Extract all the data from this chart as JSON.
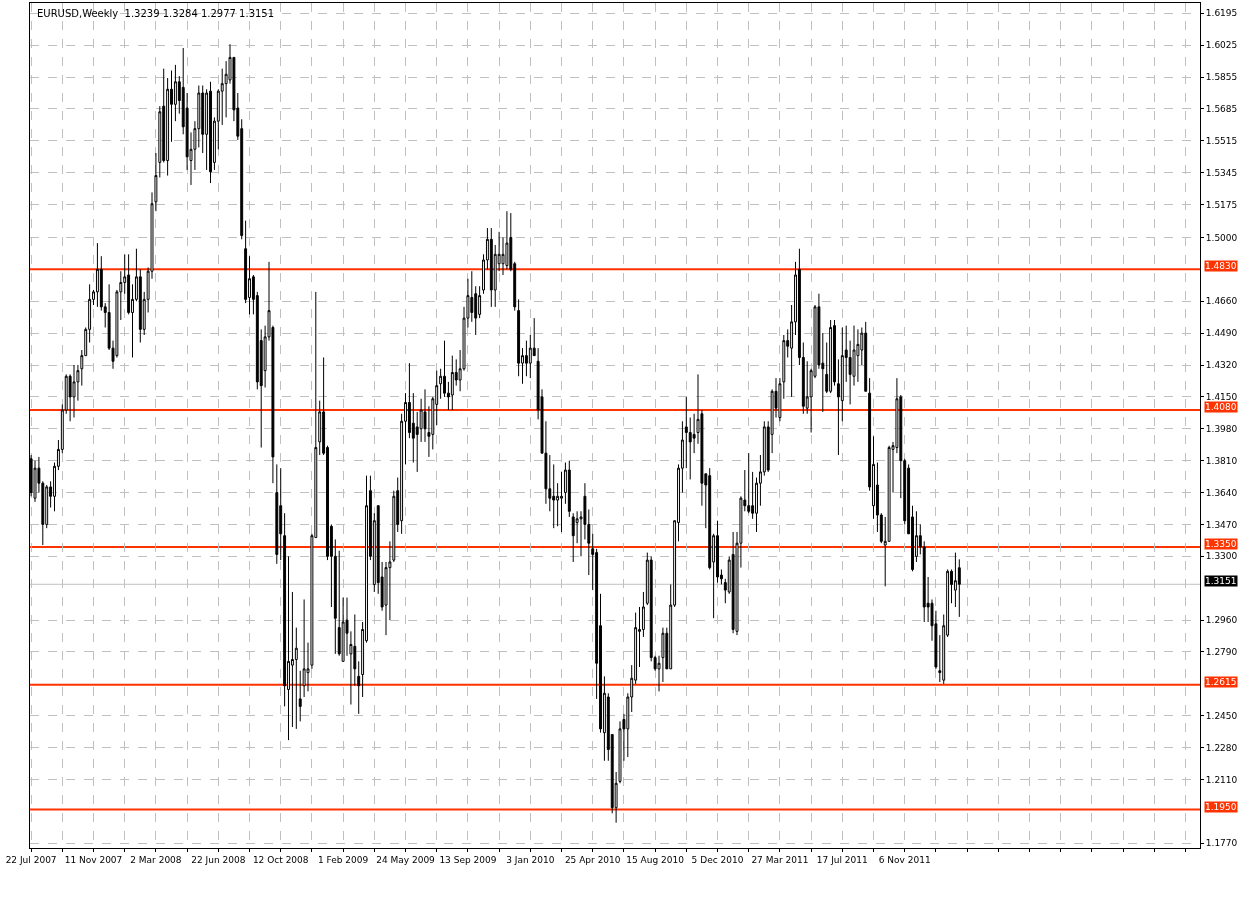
{
  "chart_data": {
    "type": "candlestick",
    "title": "EURUSD,Weekly  1.3239 1.3284 1.2977 1.3151",
    "x": [
      "2007-07-22",
      "2007-07-29",
      "2007-08-05",
      "2007-08-12",
      "2007-08-19",
      "2007-08-26",
      "2007-09-02",
      "2007-09-09",
      "2007-09-16",
      "2007-09-23",
      "2007-09-30",
      "2007-10-07",
      "2007-10-14",
      "2007-10-21",
      "2007-10-28",
      "2007-11-04",
      "2007-11-11",
      "2007-11-18",
      "2007-11-25",
      "2007-12-02",
      "2007-12-09",
      "2007-12-16",
      "2007-12-23",
      "2007-12-30",
      "2008-01-06",
      "2008-01-13",
      "2008-01-20",
      "2008-01-27",
      "2008-02-03",
      "2008-02-10",
      "2008-02-17",
      "2008-02-24",
      "2008-03-02",
      "2008-03-09",
      "2008-03-16",
      "2008-03-23",
      "2008-03-30",
      "2008-04-06",
      "2008-04-13",
      "2008-04-20",
      "2008-04-27",
      "2008-05-04",
      "2008-05-11",
      "2008-05-18",
      "2008-05-25",
      "2008-06-01",
      "2008-06-08",
      "2008-06-15",
      "2008-06-22",
      "2008-06-29",
      "2008-07-06",
      "2008-07-13",
      "2008-07-20",
      "2008-07-27",
      "2008-08-03",
      "2008-08-10",
      "2008-08-17",
      "2008-08-24",
      "2008-08-31",
      "2008-09-07",
      "2008-09-14",
      "2008-09-21",
      "2008-09-28",
      "2008-10-05",
      "2008-10-12",
      "2008-10-19",
      "2008-10-26",
      "2008-11-02",
      "2008-11-09",
      "2008-11-16",
      "2008-11-23",
      "2008-11-30",
      "2008-12-07",
      "2008-12-14",
      "2008-12-21",
      "2008-12-28",
      "2009-01-04",
      "2009-01-11",
      "2009-01-18",
      "2009-01-25",
      "2009-02-01",
      "2009-02-08",
      "2009-02-15",
      "2009-02-22",
      "2009-03-01",
      "2009-03-08",
      "2009-03-15",
      "2009-03-22",
      "2009-03-29",
      "2009-04-05",
      "2009-04-12",
      "2009-04-19",
      "2009-04-26",
      "2009-05-03",
      "2009-05-10",
      "2009-05-17",
      "2009-05-24",
      "2009-05-31",
      "2009-06-07",
      "2009-06-14",
      "2009-06-21",
      "2009-06-28",
      "2009-07-05",
      "2009-07-12",
      "2009-07-19",
      "2009-07-26",
      "2009-08-02",
      "2009-08-09",
      "2009-08-16",
      "2009-08-23",
      "2009-08-30",
      "2009-09-06",
      "2009-09-13",
      "2009-09-20",
      "2009-09-27",
      "2009-10-04",
      "2009-10-11",
      "2009-10-18",
      "2009-10-25",
      "2009-11-01",
      "2009-11-08",
      "2009-11-15",
      "2009-11-22",
      "2009-11-29",
      "2009-12-06",
      "2009-12-13",
      "2009-12-20",
      "2009-12-27",
      "2010-01-03",
      "2010-01-10",
      "2010-01-17",
      "2010-01-24",
      "2010-01-31",
      "2010-02-07",
      "2010-02-14",
      "2010-02-21",
      "2010-02-28",
      "2010-03-07",
      "2010-03-14",
      "2010-03-21",
      "2010-03-28",
      "2010-04-04",
      "2010-04-11",
      "2010-04-18",
      "2010-04-25",
      "2010-05-02",
      "2010-05-09",
      "2010-05-16",
      "2010-05-23",
      "2010-05-30",
      "2010-06-06",
      "2010-06-13",
      "2010-06-20",
      "2010-06-27",
      "2010-07-04",
      "2010-07-11",
      "2010-07-18",
      "2010-07-25",
      "2010-08-01",
      "2010-08-08",
      "2010-08-15",
      "2010-08-22",
      "2010-08-29",
      "2010-09-05",
      "2010-09-12",
      "2010-09-19",
      "2010-09-26",
      "2010-10-03",
      "2010-10-10",
      "2010-10-17",
      "2010-10-24",
      "2010-10-31",
      "2010-11-07",
      "2010-11-14",
      "2010-11-21",
      "2010-11-28",
      "2010-12-05",
      "2010-12-12",
      "2010-12-19",
      "2010-12-26",
      "2011-01-02",
      "2011-01-09",
      "2011-01-16",
      "2011-01-23",
      "2011-01-30",
      "2011-02-06",
      "2011-02-13",
      "2011-02-20",
      "2011-02-27",
      "2011-03-06",
      "2011-03-13",
      "2011-03-20",
      "2011-03-27",
      "2011-04-03",
      "2011-04-10",
      "2011-04-17",
      "2011-04-24",
      "2011-05-01",
      "2011-05-08",
      "2011-05-15",
      "2011-05-22",
      "2011-05-29",
      "2011-06-05",
      "2011-06-12",
      "2011-06-19",
      "2011-06-26",
      "2011-07-03",
      "2011-07-10",
      "2011-07-17",
      "2011-07-24",
      "2011-07-31",
      "2011-08-07",
      "2011-08-14",
      "2011-08-21",
      "2011-08-28",
      "2011-09-04",
      "2011-09-11",
      "2011-09-18",
      "2011-09-25",
      "2011-10-02",
      "2011-10-09",
      "2011-10-16",
      "2011-10-23",
      "2011-10-30",
      "2011-11-06",
      "2011-11-13",
      "2011-11-20",
      "2011-11-27",
      "2011-12-04",
      "2011-12-11",
      "2011-12-18",
      "2011-12-25",
      "2012-01-01",
      "2012-01-08",
      "2012-01-15",
      "2012-01-22",
      "2012-01-29",
      "2012-02-05",
      "2012-02-12"
    ],
    "ohlc": [
      [
        1.382,
        1.384,
        1.362,
        1.364
      ],
      [
        1.361,
        1.381,
        1.359,
        1.377
      ],
      [
        1.377,
        1.383,
        1.364,
        1.369
      ],
      [
        1.369,
        1.37,
        1.336,
        1.347
      ],
      [
        1.347,
        1.368,
        1.345,
        1.367
      ],
      [
        1.367,
        1.37,
        1.356,
        1.362
      ],
      [
        1.362,
        1.38,
        1.354,
        1.378
      ],
      [
        1.378,
        1.392,
        1.376,
        1.387
      ],
      [
        1.387,
        1.411,
        1.385,
        1.408
      ],
      [
        1.408,
        1.427,
        1.406,
        1.426
      ],
      [
        1.426,
        1.427,
        1.402,
        1.415
      ],
      [
        1.415,
        1.432,
        1.404,
        1.423
      ],
      [
        1.423,
        1.432,
        1.413,
        1.429
      ],
      [
        1.43,
        1.44,
        1.421,
        1.437
      ],
      [
        1.437,
        1.452,
        1.437,
        1.451
      ],
      [
        1.451,
        1.475,
        1.444,
        1.467
      ],
      [
        1.467,
        1.472,
        1.464,
        1.471
      ],
      [
        1.471,
        1.497,
        1.463,
        1.483
      ],
      [
        1.483,
        1.49,
        1.461,
        1.463
      ],
      [
        1.463,
        1.465,
        1.452,
        1.46
      ],
      [
        1.46,
        1.475,
        1.44,
        1.441
      ],
      [
        1.441,
        1.445,
        1.43,
        1.434
      ],
      [
        1.437,
        1.472,
        1.436,
        1.471
      ],
      [
        1.471,
        1.482,
        1.456,
        1.476
      ],
      [
        1.476,
        1.491,
        1.47,
        1.479
      ],
      [
        1.48,
        1.491,
        1.459,
        1.46
      ],
      [
        1.46,
        1.475,
        1.436,
        1.467
      ],
      [
        1.467,
        1.494,
        1.466,
        1.479
      ],
      [
        1.479,
        1.483,
        1.444,
        1.451
      ],
      [
        1.451,
        1.471,
        1.448,
        1.467
      ],
      [
        1.467,
        1.484,
        1.46,
        1.482
      ],
      [
        1.482,
        1.524,
        1.478,
        1.518
      ],
      [
        1.519,
        1.545,
        1.514,
        1.533
      ],
      [
        1.54,
        1.57,
        1.532,
        1.567
      ],
      [
        1.57,
        1.59,
        1.54,
        1.541
      ],
      [
        1.541,
        1.585,
        1.533,
        1.579
      ],
      [
        1.579,
        1.589,
        1.551,
        1.571
      ],
      [
        1.571,
        1.592,
        1.562,
        1.583
      ],
      [
        1.583,
        1.586,
        1.566,
        1.573
      ],
      [
        1.58,
        1.601,
        1.555,
        1.559
      ],
      [
        1.569,
        1.577,
        1.536,
        1.543
      ],
      [
        1.541,
        1.556,
        1.528,
        1.547
      ],
      [
        1.547,
        1.562,
        1.536,
        1.558
      ],
      [
        1.558,
        1.581,
        1.548,
        1.577
      ],
      [
        1.577,
        1.581,
        1.545,
        1.555
      ],
      [
        1.555,
        1.579,
        1.536,
        1.577
      ],
      [
        1.578,
        1.583,
        1.529,
        1.535
      ],
      [
        1.54,
        1.564,
        1.536,
        1.562
      ],
      [
        1.562,
        1.579,
        1.547,
        1.578
      ],
      [
        1.578,
        1.59,
        1.56,
        1.582
      ],
      [
        1.582,
        1.594,
        1.564,
        1.587
      ],
      [
        1.584,
        1.603,
        1.582,
        1.596
      ],
      [
        1.596,
        1.596,
        1.562,
        1.568
      ],
      [
        1.569,
        1.577,
        1.552,
        1.554
      ],
      [
        1.558,
        1.563,
        1.499,
        1.501
      ],
      [
        1.494,
        1.509,
        1.465,
        1.467
      ],
      [
        1.468,
        1.49,
        1.459,
        1.478
      ],
      [
        1.479,
        1.48,
        1.459,
        1.467
      ],
      [
        1.469,
        1.471,
        1.419,
        1.423
      ],
      [
        1.445,
        1.451,
        1.388,
        1.421
      ],
      [
        1.429,
        1.453,
        1.42,
        1.447
      ],
      [
        1.447,
        1.487,
        1.445,
        1.461
      ],
      [
        1.452,
        1.453,
        1.369,
        1.383
      ],
      [
        1.364,
        1.379,
        1.326,
        1.331
      ],
      [
        1.357,
        1.377,
        1.328,
        1.342
      ],
      [
        1.341,
        1.353,
        1.25,
        1.261
      ],
      [
        1.259,
        1.33,
        1.232,
        1.274
      ],
      [
        1.272,
        1.311,
        1.239,
        1.275
      ],
      [
        1.275,
        1.292,
        1.238,
        1.281
      ],
      [
        1.254,
        1.269,
        1.242,
        1.25
      ],
      [
        1.261,
        1.307,
        1.255,
        1.27
      ],
      [
        1.268,
        1.284,
        1.258,
        1.27
      ],
      [
        1.272,
        1.342,
        1.27,
        1.341
      ],
      [
        1.34,
        1.471,
        1.34,
        1.388
      ],
      [
        1.391,
        1.413,
        1.384,
        1.407
      ],
      [
        1.407,
        1.436,
        1.384,
        1.385
      ],
      [
        1.388,
        1.389,
        1.328,
        1.33
      ],
      [
        1.346,
        1.347,
        1.303,
        1.33
      ],
      [
        1.33,
        1.339,
        1.278,
        1.297
      ],
      [
        1.292,
        1.333,
        1.277,
        1.278
      ],
      [
        1.274,
        1.308,
        1.274,
        1.295
      ],
      [
        1.296,
        1.308,
        1.277,
        1.289
      ],
      [
        1.278,
        1.29,
        1.251,
        1.283
      ],
      [
        1.282,
        1.299,
        1.261,
        1.27
      ],
      [
        1.266,
        1.274,
        1.246,
        1.261
      ],
      [
        1.267,
        1.295,
        1.255,
        1.291
      ],
      [
        1.285,
        1.373,
        1.284,
        1.357
      ],
      [
        1.365,
        1.373,
        1.328,
        1.33
      ],
      [
        1.315,
        1.353,
        1.311,
        1.349
      ],
      [
        1.357,
        1.357,
        1.31,
        1.316
      ],
      [
        1.319,
        1.327,
        1.301,
        1.303
      ],
      [
        1.304,
        1.327,
        1.288,
        1.324
      ],
      [
        1.324,
        1.338,
        1.296,
        1.327
      ],
      [
        1.328,
        1.365,
        1.327,
        1.362
      ],
      [
        1.365,
        1.372,
        1.343,
        1.347
      ],
      [
        1.349,
        1.406,
        1.342,
        1.402
      ],
      [
        1.402,
        1.417,
        1.379,
        1.412
      ],
      [
        1.412,
        1.433,
        1.393,
        1.396
      ],
      [
        1.401,
        1.417,
        1.38,
        1.393
      ],
      [
        1.399,
        1.407,
        1.375,
        1.395
      ],
      [
        1.398,
        1.414,
        1.391,
        1.408
      ],
      [
        1.407,
        1.419,
        1.391,
        1.398
      ],
      [
        1.396,
        1.41,
        1.383,
        1.394
      ],
      [
        1.395,
        1.415,
        1.387,
        1.414
      ],
      [
        1.411,
        1.429,
        1.4,
        1.421
      ],
      [
        1.422,
        1.43,
        1.414,
        1.426
      ],
      [
        1.426,
        1.445,
        1.415,
        1.417
      ],
      [
        1.417,
        1.423,
        1.408,
        1.415
      ],
      [
        1.416,
        1.437,
        1.408,
        1.428
      ],
      [
        1.428,
        1.435,
        1.421,
        1.424
      ],
      [
        1.424,
        1.44,
        1.418,
        1.43
      ],
      [
        1.43,
        1.463,
        1.429,
        1.457
      ],
      [
        1.457,
        1.478,
        1.452,
        1.469
      ],
      [
        1.468,
        1.482,
        1.455,
        1.46
      ],
      [
        1.47,
        1.474,
        1.448,
        1.457
      ],
      [
        1.459,
        1.474,
        1.457,
        1.469
      ],
      [
        1.472,
        1.491,
        1.47,
        1.488
      ],
      [
        1.488,
        1.505,
        1.483,
        1.499
      ],
      [
        1.499,
        1.505,
        1.463,
        1.472
      ],
      [
        1.472,
        1.496,
        1.463,
        1.491
      ],
      [
        1.486,
        1.503,
        1.482,
        1.491
      ],
      [
        1.486,
        1.5,
        1.48,
        1.491
      ],
      [
        1.485,
        1.514,
        1.483,
        1.497
      ],
      [
        1.5,
        1.513,
        1.482,
        1.483
      ],
      [
        1.486,
        1.487,
        1.461,
        1.463
      ],
      [
        1.461,
        1.467,
        1.426,
        1.433
      ],
      [
        1.433,
        1.441,
        1.422,
        1.437
      ],
      [
        1.437,
        1.445,
        1.426,
        1.433
      ],
      [
        1.433,
        1.448,
        1.425,
        1.441
      ],
      [
        1.441,
        1.457,
        1.437,
        1.437
      ],
      [
        1.434,
        1.441,
        1.403,
        1.408
      ],
      [
        1.415,
        1.419,
        1.385,
        1.385
      ],
      [
        1.385,
        1.402,
        1.358,
        1.366
      ],
      [
        1.366,
        1.384,
        1.354,
        1.361
      ],
      [
        1.362,
        1.379,
        1.345,
        1.36
      ],
      [
        1.36,
        1.369,
        1.346,
        1.362
      ],
      [
        1.361,
        1.375,
        1.343,
        1.362
      ],
      [
        1.364,
        1.38,
        1.358,
        1.376
      ],
      [
        1.376,
        1.381,
        1.351,
        1.354
      ],
      [
        1.351,
        1.353,
        1.327,
        1.341
      ],
      [
        1.348,
        1.354,
        1.337,
        1.35
      ],
      [
        1.35,
        1.354,
        1.33,
        1.351
      ],
      [
        1.362,
        1.369,
        1.339,
        1.347
      ],
      [
        1.347,
        1.355,
        1.32,
        1.337
      ],
      [
        1.334,
        1.342,
        1.312,
        1.331
      ],
      [
        1.332,
        1.334,
        1.254,
        1.273
      ],
      [
        1.293,
        1.31,
        1.236,
        1.238
      ],
      [
        1.236,
        1.266,
        1.221,
        1.257
      ],
      [
        1.255,
        1.257,
        1.221,
        1.227
      ],
      [
        1.235,
        1.235,
        1.193,
        1.196
      ],
      [
        1.196,
        1.215,
        1.188,
        1.209
      ],
      [
        1.21,
        1.242,
        1.209,
        1.238
      ],
      [
        1.243,
        1.246,
        1.221,
        1.238
      ],
      [
        1.238,
        1.257,
        1.223,
        1.255
      ],
      [
        1.255,
        1.272,
        1.247,
        1.265
      ],
      [
        1.264,
        1.3,
        1.262,
        1.292
      ],
      [
        1.29,
        1.303,
        1.271,
        1.291
      ],
      [
        1.291,
        1.311,
        1.287,
        1.303
      ],
      [
        1.305,
        1.332,
        1.304,
        1.328
      ],
      [
        1.328,
        1.33,
        1.274,
        1.276
      ],
      [
        1.276,
        1.277,
        1.269,
        1.27
      ],
      [
        1.27,
        1.277,
        1.258,
        1.273
      ],
      [
        1.276,
        1.292,
        1.263,
        1.289
      ],
      [
        1.289,
        1.292,
        1.27,
        1.27
      ],
      [
        1.27,
        1.315,
        1.27,
        1.304
      ],
      [
        1.304,
        1.349,
        1.303,
        1.349
      ],
      [
        1.348,
        1.379,
        1.338,
        1.377
      ],
      [
        1.377,
        1.402,
        1.364,
        1.392
      ],
      [
        1.399,
        1.415,
        1.377,
        1.396
      ],
      [
        1.396,
        1.404,
        1.371,
        1.391
      ],
      [
        1.395,
        1.406,
        1.385,
        1.393
      ],
      [
        1.396,
        1.427,
        1.39,
        1.403
      ],
      [
        1.406,
        1.408,
        1.357,
        1.369
      ],
      [
        1.374,
        1.374,
        1.345,
        1.368
      ],
      [
        1.373,
        1.377,
        1.323,
        1.324
      ],
      [
        1.327,
        1.342,
        1.297,
        1.341
      ],
      [
        1.341,
        1.349,
        1.316,
        1.319
      ],
      [
        1.32,
        1.323,
        1.315,
        1.318
      ],
      [
        1.316,
        1.318,
        1.305,
        1.312
      ],
      [
        1.311,
        1.33,
        1.31,
        1.328
      ],
      [
        1.331,
        1.343,
        1.289,
        1.291
      ],
      [
        1.29,
        1.343,
        1.288,
        1.337
      ],
      [
        1.337,
        1.362,
        1.324,
        1.361
      ],
      [
        1.36,
        1.376,
        1.354,
        1.357
      ],
      [
        1.357,
        1.385,
        1.353,
        1.354
      ],
      [
        1.357,
        1.375,
        1.35,
        1.353
      ],
      [
        1.353,
        1.372,
        1.343,
        1.369
      ],
      [
        1.369,
        1.384,
        1.357,
        1.375
      ],
      [
        1.375,
        1.402,
        1.373,
        1.399
      ],
      [
        1.399,
        1.402,
        1.375,
        1.376
      ],
      [
        1.395,
        1.419,
        1.385,
        1.418
      ],
      [
        1.418,
        1.425,
        1.404,
        1.409
      ],
      [
        1.404,
        1.425,
        1.402,
        1.422
      ],
      [
        1.423,
        1.448,
        1.414,
        1.445
      ],
      [
        1.445,
        1.451,
        1.436,
        1.442
      ],
      [
        1.441,
        1.464,
        1.415,
        1.455
      ],
      [
        1.455,
        1.487,
        1.448,
        1.48
      ],
      [
        1.483,
        1.494,
        1.432,
        1.436
      ],
      [
        1.436,
        1.444,
        1.406,
        1.41
      ],
      [
        1.409,
        1.434,
        1.406,
        1.415
      ],
      [
        1.415,
        1.43,
        1.396,
        1.429
      ],
      [
        1.426,
        1.464,
        1.425,
        1.463
      ],
      [
        1.463,
        1.47,
        1.43,
        1.432
      ],
      [
        1.433,
        1.449,
        1.407,
        1.43
      ],
      [
        1.427,
        1.444,
        1.417,
        1.418
      ],
      [
        1.418,
        1.456,
        1.417,
        1.452
      ],
      [
        1.453,
        1.456,
        1.421,
        1.423
      ],
      [
        1.422,
        1.435,
        1.384,
        1.415
      ],
      [
        1.413,
        1.452,
        1.402,
        1.437
      ],
      [
        1.44,
        1.453,
        1.423,
        1.436
      ],
      [
        1.436,
        1.445,
        1.411,
        1.427
      ],
      [
        1.426,
        1.453,
        1.421,
        1.44
      ],
      [
        1.437,
        1.451,
        1.423,
        1.443
      ],
      [
        1.44,
        1.452,
        1.432,
        1.449
      ],
      [
        1.449,
        1.455,
        1.418,
        1.418
      ],
      [
        1.417,
        1.425,
        1.365,
        1.367
      ],
      [
        1.357,
        1.394,
        1.35,
        1.379
      ],
      [
        1.368,
        1.38,
        1.343,
        1.352
      ],
      [
        1.352,
        1.353,
        1.337,
        1.338
      ],
      [
        1.336,
        1.351,
        1.314,
        1.338
      ],
      [
        1.338,
        1.389,
        1.338,
        1.388
      ],
      [
        1.387,
        1.391,
        1.364,
        1.389
      ],
      [
        1.388,
        1.425,
        1.385,
        1.414
      ],
      [
        1.415,
        1.416,
        1.361,
        1.381
      ],
      [
        1.381,
        1.382,
        1.347,
        1.349
      ],
      [
        1.377,
        1.379,
        1.342,
        1.342
      ],
      [
        1.351,
        1.357,
        1.322,
        1.323
      ],
      [
        1.33,
        1.354,
        1.327,
        1.341
      ],
      [
        1.341,
        1.347,
        1.331,
        1.335
      ],
      [
        1.335,
        1.338,
        1.295,
        1.303
      ],
      [
        1.305,
        1.319,
        1.295,
        1.303
      ],
      [
        1.305,
        1.307,
        1.285,
        1.293
      ],
      [
        1.294,
        1.301,
        1.27,
        1.271
      ],
      [
        1.269,
        1.288,
        1.263,
        1.268
      ],
      [
        1.264,
        1.299,
        1.262,
        1.293
      ],
      [
        1.288,
        1.323,
        1.287,
        1.322
      ],
      [
        1.322,
        1.323,
        1.305,
        1.315
      ],
      [
        1.312,
        1.332,
        1.303,
        1.317
      ],
      [
        1.3239,
        1.3284,
        1.2977,
        1.3151
      ]
    ],
    "xlim": [
      "2007-07-20",
      "2013-04-19"
    ],
    "xticks": [
      {
        "value": "2007-07-22",
        "label": "22 Jul 2007"
      },
      {
        "value": "2007-09-16",
        "label": null
      },
      {
        "value": "2007-11-11",
        "label": "11 Nov 2007"
      },
      {
        "value": "2008-01-06",
        "label": null
      },
      {
        "value": "2008-03-02",
        "label": "2 Mar 2008"
      },
      {
        "value": "2008-04-27",
        "label": null
      },
      {
        "value": "2008-06-22",
        "label": "22 Jun 2008"
      },
      {
        "value": "2008-08-17",
        "label": null
      },
      {
        "value": "2008-10-12",
        "label": "12 Oct 2008"
      },
      {
        "value": "2008-12-07",
        "label": null
      },
      {
        "value": "2009-02-01",
        "label": "1 Feb 2009"
      },
      {
        "value": "2009-03-29",
        "label": null
      },
      {
        "value": "2009-05-24",
        "label": "24 May 2009"
      },
      {
        "value": "2009-07-19",
        "label": null
      },
      {
        "value": "2009-09-13",
        "label": "13 Sep 2009"
      },
      {
        "value": "2009-11-08",
        "label": null
      },
      {
        "value": "2010-01-03",
        "label": "3 Jan 2010"
      },
      {
        "value": "2010-02-28",
        "label": null
      },
      {
        "value": "2010-04-25",
        "label": "25 Apr 2010"
      },
      {
        "value": "2010-06-20",
        "label": null
      },
      {
        "value": "2010-08-15",
        "label": "15 Aug 2010"
      },
      {
        "value": "2010-10-10",
        "label": null
      },
      {
        "value": "2010-12-05",
        "label": "5 Dec 2010"
      },
      {
        "value": "2011-01-30",
        "label": null
      },
      {
        "value": "2011-03-27",
        "label": "27 Mar 2011"
      },
      {
        "value": "2011-05-22",
        "label": null
      },
      {
        "value": "2011-07-17",
        "label": "17 Jul 2011"
      },
      {
        "value": "2011-09-11",
        "label": null
      },
      {
        "value": "2011-11-06",
        "label": "6 Nov 2011"
      },
      {
        "value": "2012-01-01",
        "label": null
      },
      {
        "value": "2012-02-26",
        "label": null
      },
      {
        "value": "2012-04-22",
        "label": null
      },
      {
        "value": "2012-06-17",
        "label": null
      },
      {
        "value": "2012-08-12",
        "label": null
      },
      {
        "value": "2012-10-07",
        "label": null
      },
      {
        "value": "2012-12-02",
        "label": null
      },
      {
        "value": "2013-01-27",
        "label": null
      },
      {
        "value": "2013-03-24",
        "label": null
      }
    ],
    "ylim": [
      1.1745,
      1.625
    ],
    "yticks": [
      {
        "value": 1.6195,
        "label": "1.6195"
      },
      {
        "value": 1.6025,
        "label": "1.6025"
      },
      {
        "value": 1.5855,
        "label": "1.5855"
      },
      {
        "value": 1.5685,
        "label": "1.5685"
      },
      {
        "value": 1.5515,
        "label": "1.5515"
      },
      {
        "value": 1.5345,
        "label": "1.5345"
      },
      {
        "value": 1.5175,
        "label": "1.5175"
      },
      {
        "value": 1.5,
        "label": "1.5000"
      },
      {
        "value": 1.466,
        "label": "1.4660"
      },
      {
        "value": 1.449,
        "label": "1.4490"
      },
      {
        "value": 1.432,
        "label": "1.4320"
      },
      {
        "value": 1.415,
        "label": "1.4150"
      },
      {
        "value": 1.398,
        "label": "1.3980"
      },
      {
        "value": 1.381,
        "label": "1.3810"
      },
      {
        "value": 1.364,
        "label": "1.3640"
      },
      {
        "value": 1.347,
        "label": "1.3470"
      },
      {
        "value": 1.33,
        "label": "1.3300"
      },
      {
        "value": 1.296,
        "label": "1.2960"
      },
      {
        "value": 1.279,
        "label": "1.2790"
      },
      {
        "value": 1.245,
        "label": "1.2450"
      },
      {
        "value": 1.228,
        "label": "1.2280"
      },
      {
        "value": 1.211,
        "label": "1.2110"
      },
      {
        "value": 1.177,
        "label": "1.1770"
      }
    ],
    "ref_lines": [
      {
        "axis": "y",
        "value": 1.483,
        "label": "1.4830",
        "color": "#ff3300"
      },
      {
        "axis": "y",
        "value": 1.408,
        "label": "1.4080",
        "color": "#ff3300"
      },
      {
        "axis": "y",
        "value": 1.335,
        "label": "1.3350",
        "color": "#ff3300"
      },
      {
        "axis": "y",
        "value": 1.2615,
        "label": "1.2615",
        "color": "#ff3300"
      },
      {
        "axis": "y",
        "value": 1.195,
        "label": "1.1950",
        "color": "#ff3300"
      },
      {
        "axis": "y",
        "value": 1.3151,
        "label": "1.3151",
        "color": "#c0c0c0"
      }
    ],
    "grid": true
  }
}
